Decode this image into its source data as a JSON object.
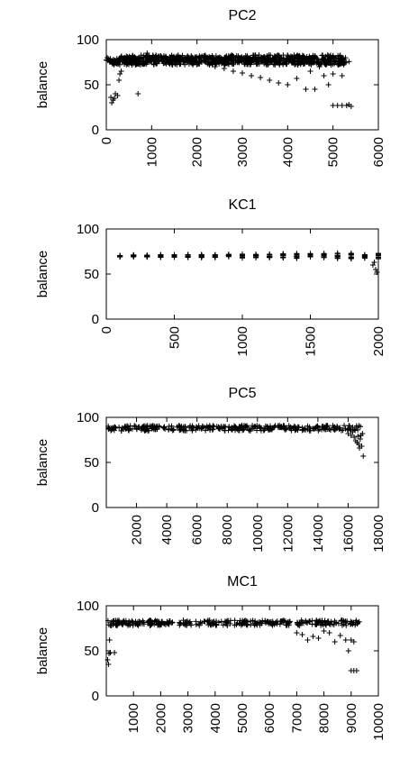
{
  "chart_data": [
    {
      "type": "scatter",
      "title": "PC2",
      "xlabel": "",
      "ylabel": "balance",
      "xlim": [
        0,
        6000
      ],
      "ylim": [
        0,
        100
      ],
      "xticks": [
        0,
        1000,
        2000,
        3000,
        4000,
        5000,
        6000
      ],
      "yticks": [
        0,
        50,
        100
      ],
      "marker": "+",
      "color": "#000000",
      "bands": [
        {
          "x": [
            0,
            5400
          ],
          "y": [
            75,
            80
          ]
        },
        {
          "x": [
            100,
            5300
          ],
          "y": [
            72,
            77
          ]
        },
        {
          "x": [
            300,
            5200
          ],
          "y": [
            78,
            83
          ]
        }
      ],
      "points": [
        [
          100,
          36
        ],
        [
          150,
          33
        ],
        [
          200,
          40
        ],
        [
          250,
          38
        ],
        [
          120,
          30
        ],
        [
          180,
          35
        ],
        [
          300,
          62
        ],
        [
          280,
          55
        ],
        [
          330,
          65
        ],
        [
          700,
          40
        ],
        [
          900,
          85
        ],
        [
          1100,
          82
        ],
        [
          2400,
          70
        ],
        [
          2600,
          68
        ],
        [
          2800,
          65
        ],
        [
          3000,
          63
        ],
        [
          3200,
          60
        ],
        [
          3400,
          58
        ],
        [
          3600,
          55
        ],
        [
          3800,
          52
        ],
        [
          4000,
          50
        ],
        [
          4200,
          57
        ],
        [
          4400,
          45
        ],
        [
          4600,
          45
        ],
        [
          4800,
          60
        ],
        [
          5000,
          62
        ],
        [
          5200,
          60
        ],
        [
          4900,
          50
        ],
        [
          4700,
          70
        ],
        [
          4500,
          65
        ],
        [
          5000,
          27
        ],
        [
          5100,
          27
        ],
        [
          5200,
          27
        ],
        [
          5300,
          27
        ],
        [
          5400,
          26
        ],
        [
          5350,
          28
        ]
      ]
    },
    {
      "type": "scatter",
      "title": "KC1",
      "xlabel": "",
      "ylabel": "balance",
      "xlim": [
        0,
        2000
      ],
      "ylim": [
        0,
        100
      ],
      "xticks": [
        0,
        500,
        1000,
        1500,
        2000
      ],
      "yticks": [
        0,
        50,
        100
      ],
      "marker": "+",
      "color": "#000000",
      "columns": {
        "start": 100,
        "step": 100,
        "end": 2000,
        "center": 70,
        "spread_start": 2,
        "spread_end": 7
      },
      "points": [
        [
          1960,
          60
        ],
        [
          1980,
          55
        ],
        [
          1990,
          52
        ],
        [
          1970,
          63
        ]
      ]
    },
    {
      "type": "scatter",
      "title": "PC5",
      "xlabel": "",
      "ylabel": "balance",
      "xlim": [
        0,
        18000
      ],
      "ylim": [
        0,
        100
      ],
      "xticks": [
        2000,
        4000,
        6000,
        8000,
        10000,
        12000,
        14000,
        16000,
        18000
      ],
      "yticks": [
        0,
        50,
        100
      ],
      "marker": "+",
      "color": "#000000",
      "bands": [
        {
          "x": [
            0,
            17000
          ],
          "y": [
            85,
            91
          ]
        }
      ],
      "points": [
        [
          16000,
          82
        ],
        [
          16200,
          80
        ],
        [
          16400,
          78
        ],
        [
          16500,
          74
        ],
        [
          16600,
          72
        ],
        [
          16700,
          70
        ],
        [
          16800,
          76
        ],
        [
          16900,
          68
        ],
        [
          17000,
          57
        ],
        [
          16850,
          80
        ],
        [
          16300,
          84
        ],
        [
          16950,
          82
        ],
        [
          16750,
          66
        ],
        [
          16650,
          79
        ]
      ]
    },
    {
      "type": "scatter",
      "title": "MC1",
      "xlabel": "",
      "ylabel": "balance",
      "xlim": [
        0,
        10000
      ],
      "ylim": [
        0,
        100
      ],
      "xticks": [
        1000,
        2000,
        3000,
        4000,
        5000,
        6000,
        7000,
        8000,
        9000,
        10000
      ],
      "yticks": [
        0,
        50,
        100
      ],
      "marker": "+",
      "color": "#000000",
      "bands": [
        {
          "x": [
            0,
            9300
          ],
          "y": [
            78,
            84
          ]
        }
      ],
      "points": [
        [
          50,
          40
        ],
        [
          80,
          35
        ],
        [
          100,
          47
        ],
        [
          150,
          48
        ],
        [
          300,
          48
        ],
        [
          120,
          62
        ],
        [
          7000,
          70
        ],
        [
          7200,
          68
        ],
        [
          7400,
          62
        ],
        [
          7600,
          66
        ],
        [
          7800,
          64
        ],
        [
          8000,
          72
        ],
        [
          8200,
          70
        ],
        [
          8400,
          60
        ],
        [
          8600,
          67
        ],
        [
          8800,
          62
        ],
        [
          8900,
          50
        ],
        [
          9000,
          62
        ],
        [
          9100,
          60
        ],
        [
          9000,
          28
        ],
        [
          9100,
          28
        ],
        [
          9200,
          28
        ]
      ]
    }
  ]
}
